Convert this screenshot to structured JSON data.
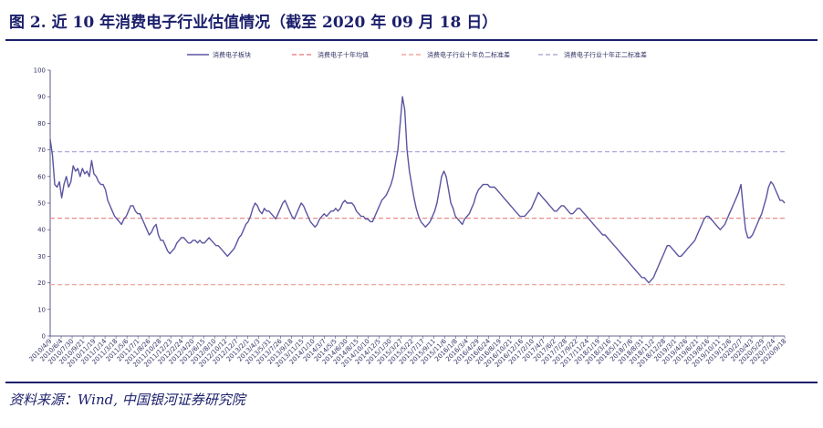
{
  "title": "图 2. 近 10 年消费电子行业估值情况（截至 2020 年 09 月 18 日）",
  "source": "资料来源：Wind, 中国银河证券研究院",
  "chart_data": {
    "type": "line",
    "title": "图 2. 近 10 年消费电子行业估值情况（截至 2020 年 09 月 18 日）",
    "xlabel": "",
    "ylabel": "",
    "ylim": [
      0,
      100
    ],
    "yticks": [
      0,
      10,
      20,
      30,
      40,
      50,
      60,
      70,
      80,
      90,
      100
    ],
    "grid": false,
    "legend_position": "top",
    "x_tick_labels": [
      "2010/4/9",
      "2010/6/4",
      "2010/7/30",
      "2010/9/21",
      "2010/11/19",
      "2011/1/14",
      "2011/3/18",
      "2011/5/6",
      "2011/7/1",
      "2011/8/26",
      "2011/10/28",
      "2011/12/23",
      "2012/2/24",
      "2012/4/20",
      "2012/6/15",
      "2012/8/10",
      "2012/10/12",
      "2012/12/7",
      "2013/2/1",
      "2013/4/3",
      "2013/5/31",
      "2013/7/26",
      "2013/9/18",
      "2013/11/15",
      "2014/1/10",
      "2014/3/7",
      "2014/5/5",
      "2014/6/30",
      "2014/8/15",
      "2014/10/10",
      "2014/12/5",
      "2015/1/30",
      "2015/3/27",
      "2015/5/22",
      "2015/7/17",
      "2015/9/11",
      "2015/11/6",
      "2016/1/8",
      "2016/3/4",
      "2016/4/29",
      "2016/6/24",
      "2016/8/19",
      "2016/10/21",
      "2016/12/16",
      "2017/2/10",
      "2017/4/7",
      "2017/6/2",
      "2017/7/28",
      "2017/9/22",
      "2017/11/24",
      "2018/1/19",
      "2018/3/16",
      "2018/5/11",
      "2018/7/6",
      "2018/8/31",
      "2018/11/2",
      "2018/12/28",
      "2019/3/1",
      "2019/4/26",
      "2019/6/21",
      "2019/8/16",
      "2019/10/11",
      "2019/12/6",
      "2020/2/7",
      "2020/4/3",
      "2020/5/29",
      "2020/7/24",
      "2020/9/18"
    ],
    "reference_lines": [
      {
        "name": "消费电子十年均值",
        "value": 44.3,
        "color": "#e98a8a"
      },
      {
        "name": "消费电子行业十年负二标准差",
        "value": 19.3,
        "color": "#f0a8a0"
      },
      {
        "name": "消费电子行业十年正二标准差",
        "value": 69.3,
        "color": "#b0acd8"
      }
    ],
    "series": [
      {
        "name": "消费电子板块",
        "color": "#5a54a0",
        "values": [
          74,
          68,
          57,
          56,
          58,
          52,
          57,
          60,
          56,
          58,
          64,
          62,
          63,
          60,
          63,
          61,
          62,
          60,
          66,
          61,
          60,
          58,
          57,
          57,
          55,
          51,
          49,
          47,
          45,
          44,
          43,
          42,
          44,
          45,
          47,
          49,
          49,
          47,
          46,
          46,
          44,
          42,
          40,
          38,
          39,
          41,
          42,
          38,
          36,
          36,
          34,
          32,
          31,
          32,
          33,
          35,
          36,
          37,
          37,
          36,
          35,
          35,
          36,
          36,
          35,
          36,
          35,
          35,
          36,
          37,
          36,
          35,
          34,
          34,
          33,
          32,
          31,
          30,
          31,
          32,
          33,
          35,
          37,
          38,
          40,
          42,
          43,
          45,
          48,
          50,
          49,
          47,
          46,
          48,
          47,
          47,
          46,
          45,
          44,
          46,
          48,
          50,
          51,
          49,
          47,
          45,
          44,
          46,
          48,
          50,
          49,
          47,
          45,
          43,
          42,
          41,
          42,
          44,
          45,
          46,
          45,
          46,
          47,
          47,
          48,
          47,
          48,
          50,
          51,
          50,
          50,
          50,
          49,
          47,
          46,
          45,
          45,
          44,
          44,
          43,
          43,
          45,
          47,
          49,
          51,
          52,
          53,
          55,
          57,
          60,
          65,
          70,
          80,
          90,
          85,
          70,
          62,
          57,
          52,
          48,
          45,
          43,
          42,
          41,
          42,
          43,
          45,
          47,
          50,
          55,
          60,
          62,
          60,
          55,
          50,
          48,
          45,
          44,
          43,
          42,
          44,
          45,
          46,
          48,
          50,
          53,
          55,
          56,
          57,
          57,
          57,
          56,
          56,
          56,
          55,
          54,
          53,
          52,
          51,
          50,
          49,
          48,
          47,
          46,
          45,
          45,
          45,
          46,
          47,
          48,
          50,
          52,
          54,
          53,
          52,
          51,
          50,
          49,
          48,
          47,
          47,
          48,
          49,
          49,
          48,
          47,
          46,
          46,
          47,
          48,
          48,
          47,
          46,
          45,
          44,
          43,
          42,
          41,
          40,
          39,
          38,
          38,
          37,
          36,
          35,
          34,
          33,
          32,
          31,
          30,
          29,
          28,
          27,
          26,
          25,
          24,
          23,
          22,
          22,
          21,
          20,
          21,
          22,
          24,
          26,
          28,
          30,
          32,
          34,
          34,
          33,
          32,
          31,
          30,
          30,
          31,
          32,
          33,
          34,
          35,
          36,
          38,
          40,
          42,
          44,
          45,
          45,
          44,
          43,
          42,
          41,
          40,
          41,
          42,
          44,
          46,
          48,
          50,
          52,
          54,
          57,
          48,
          40,
          37,
          37,
          38,
          40,
          42,
          44,
          46,
          49,
          52,
          56,
          58,
          57,
          55,
          53,
          51,
          51,
          50
        ]
      }
    ]
  }
}
